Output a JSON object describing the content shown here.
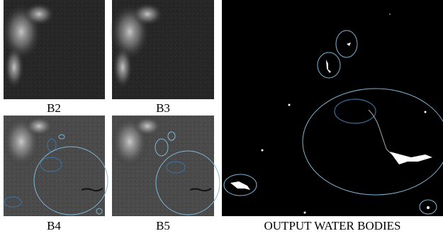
{
  "panels": [
    {
      "label": "B2"
    },
    {
      "label": "B3"
    },
    {
      "label": "B4"
    },
    {
      "label": "B5"
    }
  ],
  "output": {
    "label": "OUTPUT WATER BODIES"
  }
}
